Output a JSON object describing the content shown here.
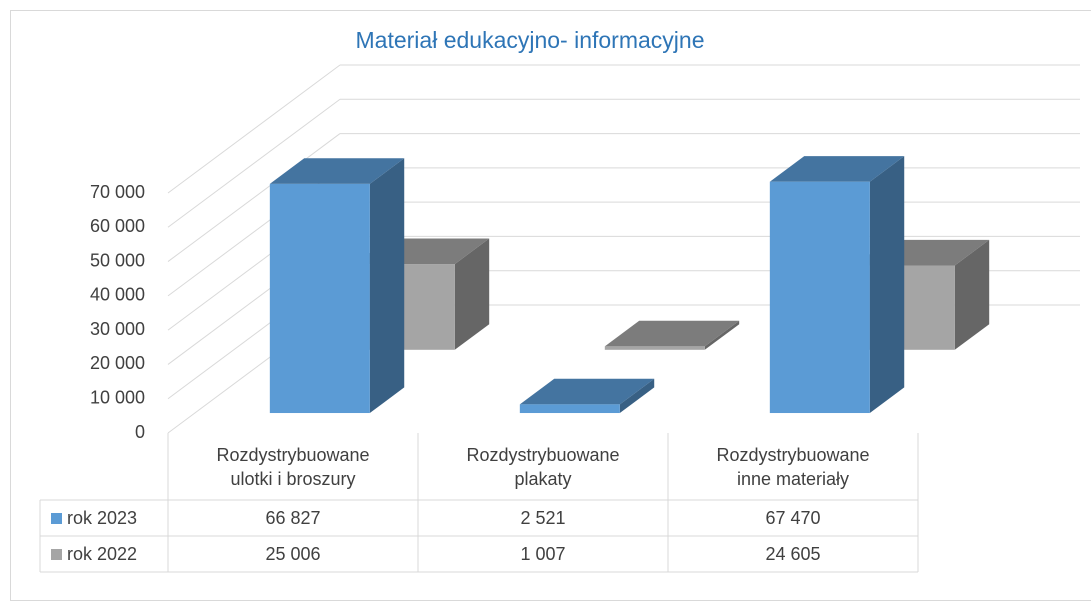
{
  "chart_data": {
    "type": "bar3d",
    "title": "Materiał edukacyjno- informacyjne",
    "categories": [
      "Rozdystrybuowane ulotki i broszury",
      "Rozdystrybuowane plakaty",
      "Rozdystrybuowane inne materiały"
    ],
    "series": [
      {
        "name": "rok 2023",
        "color": "#5b9bd5",
        "values": [
          66827,
          2521,
          67470
        ],
        "value_labels": [
          "66 827",
          "2 521",
          "67 470"
        ]
      },
      {
        "name": "rok 2022",
        "color": "#a5a5a5",
        "values": [
          25006,
          1007,
          24605
        ],
        "value_labels": [
          "25 006",
          "1 007",
          "24 605"
        ]
      }
    ],
    "ylim": [
      0,
      70000
    ],
    "yticks": [
      0,
      {
        "value": 10000,
        "label": "10 000"
      },
      {
        "value": 20000,
        "label": "20 000"
      },
      {
        "value": 30000,
        "label": "30 000"
      },
      {
        "value": 40000,
        "label": "40 000"
      },
      {
        "value": 50000,
        "label": "50 000"
      },
      {
        "value": 60000,
        "label": "60 000"
      },
      {
        "value": 70000,
        "label": "70 000"
      }
    ],
    "grid": true,
    "legend": "table"
  }
}
